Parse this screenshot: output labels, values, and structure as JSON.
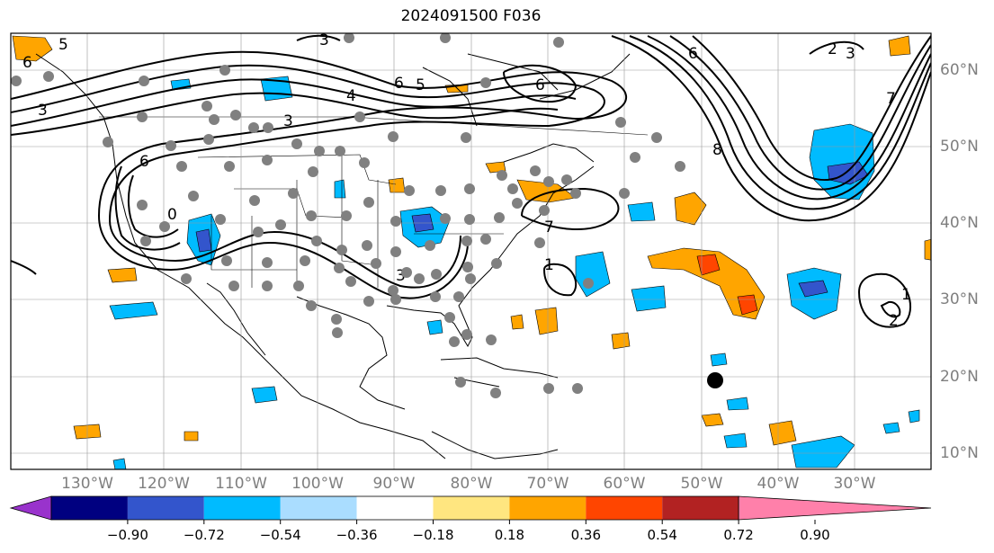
{
  "title": "2024091500 F036",
  "lat_labels": [
    "60°N",
    "50°N",
    "40°N",
    "30°N",
    "20°N",
    "10°N"
  ],
  "lon_labels": [
    "130°W",
    "120°W",
    "110°W",
    "100°W",
    "90°W",
    "80°W",
    "70°W",
    "60°W",
    "50°W",
    "40°W",
    "30°W"
  ],
  "contour_labels": [
    "3",
    "5",
    "6",
    "4",
    "6",
    "5",
    "6",
    "3",
    "6",
    "2",
    "3",
    "7",
    "8",
    "0",
    "6",
    "3",
    "7",
    "1",
    "3",
    "1",
    "2"
  ],
  "colorbar": {
    "labels": [
      "−0.90",
      "−0.72",
      "−0.54",
      "−0.36",
      "−0.18",
      "0.18",
      "0.36",
      "0.54",
      "0.72",
      "0.90"
    ],
    "colors": [
      "#9933cc",
      "#000080",
      "#3355cc",
      "#00bbff",
      "#aaddff",
      "#ffffff",
      "#ffe680",
      "#ffa500",
      "#ff4500",
      "#b22222",
      "#ff80aa"
    ]
  },
  "colors": {
    "positive_anomaly": "#ffa500",
    "strong_positive": "#ff4500",
    "negative_anomaly": "#00bbff",
    "strong_negative": "#3355cc",
    "station_dot": "#808080",
    "marker": "#000000"
  }
}
